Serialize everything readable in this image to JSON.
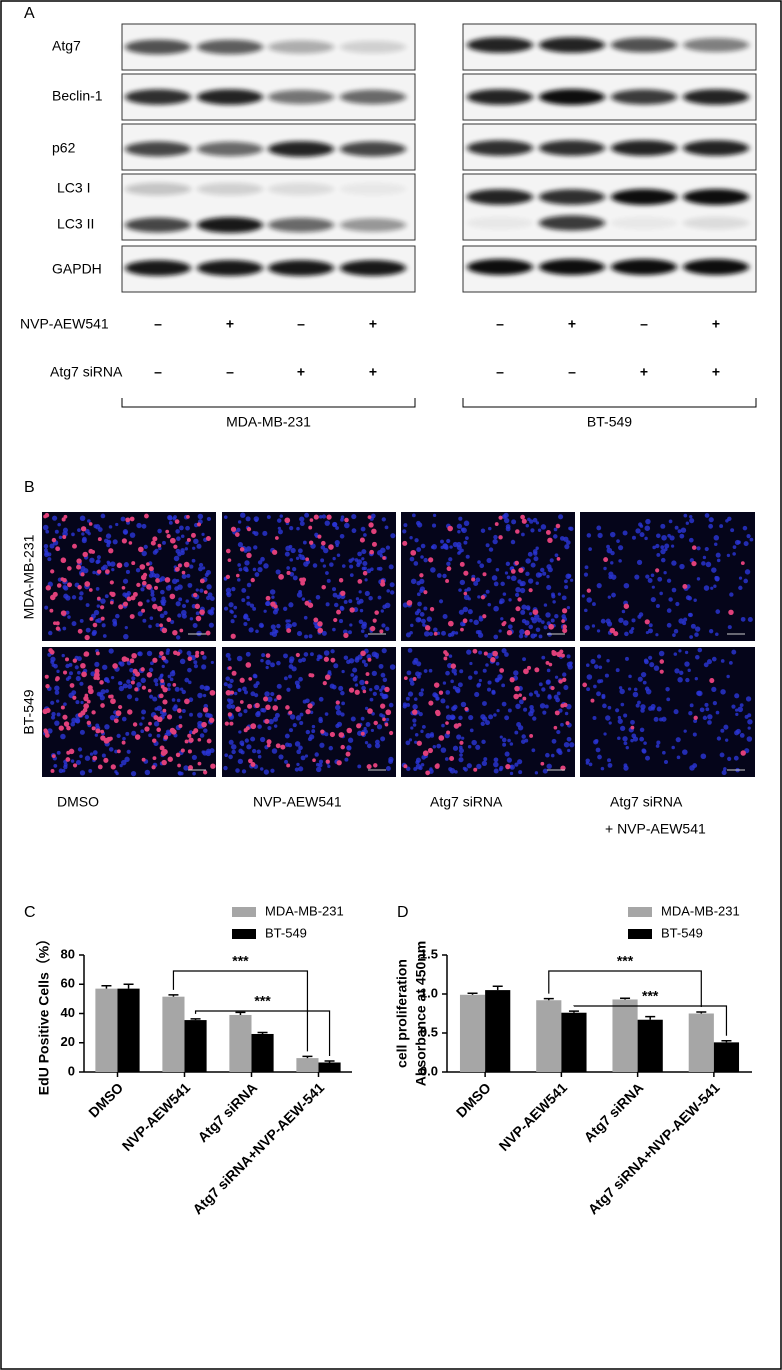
{
  "figure": {
    "panels": [
      "A",
      "B",
      "C",
      "D"
    ],
    "blot": {
      "proteins": [
        "Atg7",
        "Beclin-1",
        "p62",
        "LC3 I",
        "LC3 II",
        "GAPDH"
      ],
      "treatments": [
        {
          "name": "NVP-AEW541",
          "signs": [
            "–",
            "+",
            "–",
            "+",
            "–",
            "+",
            "–",
            "+"
          ]
        },
        {
          "name": "Atg7 siRNA",
          "signs": [
            "–",
            "–",
            "+",
            "+",
            "–",
            "–",
            "+",
            "+"
          ]
        }
      ],
      "cell_lines": [
        "MDA-MB-231",
        "BT-549"
      ]
    },
    "edu": {
      "rows": [
        "MDA-MB-231",
        "BT-549"
      ],
      "columns": [
        [
          "DMSO"
        ],
        [
          "NVP-AEW541"
        ],
        [
          "Atg7 siRNA"
        ],
        [
          "Atg7 siRNA",
          "+ NVP-AEW541"
        ]
      ]
    }
  },
  "chart_data": [
    {
      "type": "bar",
      "ylabel": [
        "EdU Positive Cells（%）"
      ],
      "categories": [
        "DMSO",
        "NVP-AEW541",
        "Atg7 siRNA",
        "Atg7 siRNA+NVP-AEW-541"
      ],
      "series": [
        {
          "name": "MDA-MB-231",
          "color": "#a6a6a6",
          "values": [
            57,
            51.5,
            39,
            9.5
          ],
          "errors": [
            2,
            1.2,
            1.8,
            1.2
          ]
        },
        {
          "name": "BT-549",
          "color": "#000000",
          "values": [
            57,
            35.5,
            26,
            6.5
          ],
          "errors": [
            3,
            0.8,
            1,
            1
          ]
        }
      ],
      "ylim": [
        0,
        80
      ],
      "yticks": [
        0,
        20,
        40,
        60,
        80
      ],
      "annotations": [
        "***",
        "***"
      ],
      "legend": "top-right"
    },
    {
      "type": "bar",
      "ylabel": [
        "cell proliferation",
        "Absorbance at 450nm"
      ],
      "categories": [
        "DMSO",
        "NVP-AEW541",
        "Atg7 siRNA",
        "Atg7 siRNA+NVP-AEW-541"
      ],
      "series": [
        {
          "name": "MDA-MB-231",
          "color": "#a6a6a6",
          "values": [
            0.99,
            0.92,
            0.93,
            0.75
          ],
          "errors": [
            0.02,
            0.02,
            0.015,
            0.02
          ]
        },
        {
          "name": "BT-549",
          "color": "#000000",
          "values": [
            1.05,
            0.76,
            0.67,
            0.38
          ],
          "errors": [
            0.05,
            0.02,
            0.04,
            0.02
          ]
        }
      ],
      "ylim": [
        0,
        1.5
      ],
      "yticks": [
        {
          "value": 0,
          "label": "0.0"
        },
        0.5,
        {
          "value": 1,
          "label": "1.0"
        },
        1.5
      ],
      "annotations": [
        "***",
        "***"
      ],
      "legend": "top-right"
    }
  ]
}
